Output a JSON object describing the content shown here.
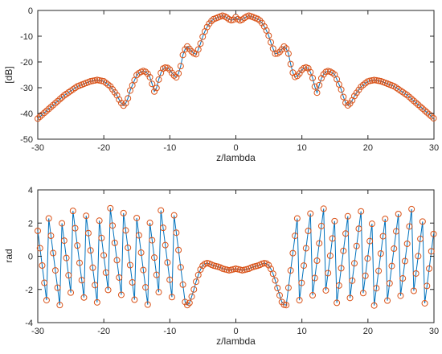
{
  "chart_data": [
    {
      "type": "line",
      "xlabel": "z/lambda",
      "ylabel": "[dB]",
      "xlim": [
        -30,
        30
      ],
      "ylim": [
        -50,
        0
      ],
      "xticks": [
        "-30",
        "-20",
        "-10",
        "0",
        "10",
        "20",
        "30"
      ],
      "yticks": [
        "0",
        "-10",
        "-20",
        "-30",
        "-40",
        "-50"
      ],
      "grid": false,
      "legend": "none",
      "markers": "circles on the same samples as the line",
      "sample_spacing": 0.333,
      "series": [
        {
          "line_color": "#0072BD",
          "marker_color": "#D95319",
          "x": [
            -30,
            -28,
            -26,
            -24,
            -22,
            -21,
            -20,
            -19,
            -18,
            -17.5,
            -17,
            -16.5,
            -16,
            -15,
            -14.5,
            -14,
            -13.5,
            -13,
            -12.5,
            -12.3,
            -12,
            -11.5,
            -11,
            -10.5,
            -10,
            -9.5,
            -9,
            -8.5,
            -8,
            -7.5,
            -7.3,
            -7,
            -6.5,
            -6,
            -5.5,
            -5,
            -4.5,
            -4,
            -3.5,
            -3,
            -2.5,
            -2,
            -1.5,
            -1,
            -0.5,
            0,
            0.5,
            1,
            1.5,
            2,
            2.5,
            3,
            3.5,
            4,
            4.5,
            5,
            5.5,
            6,
            6.5,
            7,
            7.3,
            7.5,
            8,
            8.5,
            9,
            9.5,
            10,
            10.5,
            11,
            11.5,
            12,
            12.3,
            12.5,
            13,
            13.5,
            14,
            14.5,
            15,
            16,
            16.5,
            17,
            17.5,
            18,
            19,
            20,
            21,
            22,
            24,
            26,
            28,
            30
          ],
          "y": [
            -42,
            -37.5,
            -33,
            -29.5,
            -27.5,
            -27,
            -27.5,
            -29.5,
            -33,
            -35.5,
            -37,
            -35.5,
            -31,
            -25,
            -24,
            -23.5,
            -24,
            -26,
            -30,
            -32,
            -30,
            -25,
            -22.5,
            -22,
            -23,
            -25,
            -26,
            -23.5,
            -17,
            -14,
            -14,
            -15,
            -16.5,
            -17,
            -14,
            -10,
            -7,
            -5,
            -3.5,
            -3,
            -2.5,
            -2,
            -2.5,
            -3.5,
            -4,
            -2.5,
            -4,
            -3.5,
            -2.5,
            -2,
            -2.5,
            -3,
            -3.5,
            -5,
            -7,
            -10,
            -14,
            -17,
            -16.5,
            -15,
            -14,
            -14,
            -17,
            -23.5,
            -26,
            -25,
            -23,
            -22,
            -22.5,
            -25,
            -30,
            -32,
            -30,
            -26,
            -24,
            -23.5,
            -24,
            -25,
            -31,
            -35.5,
            -37,
            -35.5,
            -33,
            -29.5,
            -27.5,
            -27,
            -27.5,
            -29.5,
            -33,
            -37.5,
            -42
          ]
        }
      ]
    },
    {
      "type": "line",
      "xlabel": "z/lambda",
      "ylabel": "rad",
      "xlim": [
        -30,
        30
      ],
      "ylim": [
        -4,
        4
      ],
      "xticks": [
        "-30",
        "-20",
        "-10",
        "0",
        "10",
        "20",
        "30"
      ],
      "yticks": [
        "4",
        "2",
        "0",
        "-2",
        "-4"
      ],
      "grid": false,
      "legend": "none",
      "markers": "circles on the same samples as the line",
      "sample_spacing": 0.333,
      "series": [
        {
          "line_color": "#0072BD",
          "marker_color": "#D95319",
          "phase_wrapped_outer_region": "|z| > 7.5, values oscillate between about -3 and 3 (phase wraps roughly every 1.9 lambda)",
          "central_region_x": [
            -7.5,
            -7,
            -6.5,
            -6,
            -5.5,
            -5,
            -4.5,
            -4,
            -3.5,
            -3,
            -2.5,
            -2,
            -1.5,
            -1,
            -0.5,
            0,
            0.5,
            1,
            1.5,
            2,
            2.5,
            3,
            3.5,
            4,
            4.5,
            5,
            5.5,
            6,
            6.5,
            7,
            7.5
          ],
          "central_region_y": [
            -3.0,
            -2.8,
            -2.2,
            -1.5,
            -0.9,
            -0.55,
            -0.4,
            -0.45,
            -0.55,
            -0.6,
            -0.65,
            -0.75,
            -0.8,
            -0.85,
            -0.8,
            -0.75,
            -0.8,
            -0.85,
            -0.8,
            -0.75,
            -0.65,
            -0.6,
            -0.55,
            -0.45,
            -0.4,
            -0.55,
            -0.9,
            -1.5,
            -2.2,
            -2.8,
            -3.0
          ]
        }
      ]
    }
  ]
}
